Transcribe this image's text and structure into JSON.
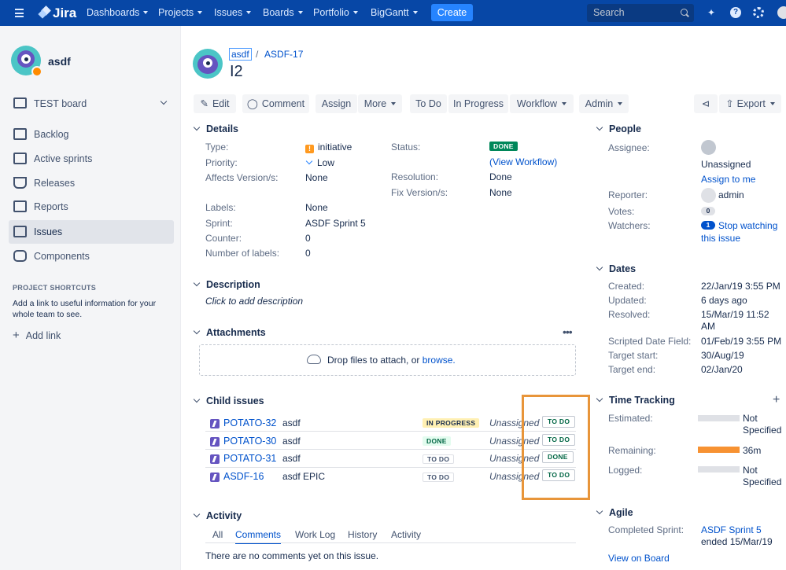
{
  "topnav": {
    "logo": "Jira",
    "items": [
      "Dashboards",
      "Projects",
      "Issues",
      "Boards",
      "Portfolio",
      "BigGantt"
    ],
    "create": "Create",
    "search_placeholder": "Search"
  },
  "sidebar": {
    "project_name": "asdf",
    "board": "TEST board",
    "items": [
      "Backlog",
      "Active sprints",
      "Releases",
      "Reports",
      "Issues",
      "Components"
    ],
    "shortcuts_title": "PROJECT SHORTCUTS",
    "shortcuts_text_1": "Add a link to useful information for your",
    "shortcuts_text_2": "whole team to see.",
    "add_link": "Add link"
  },
  "issue": {
    "breadcrumb_project": "asdf",
    "breadcrumb_sep": "/",
    "breadcrumb_key": "ASDF-17",
    "title": "I2"
  },
  "toolbar": {
    "edit": "Edit",
    "comment": "Comment",
    "assign": "Assign",
    "more": "More",
    "todo": "To Do",
    "inprogress": "In Progress",
    "workflow": "Workflow",
    "admin": "Admin",
    "export": "Export"
  },
  "details": {
    "title": "Details",
    "type_label": "Type:",
    "type_value": "initiative",
    "priority_label": "Priority:",
    "priority_value": "Low",
    "affects_label": "Affects Version/s:",
    "affects_value": "None",
    "status_label": "Status:",
    "status_value": "DONE",
    "view_workflow": "(View Workflow)",
    "resolution_label": "Resolution:",
    "resolution_value": "Done",
    "fix_label": "Fix Version/s:",
    "fix_value": "None",
    "labels_label": "Labels:",
    "labels_value": "None",
    "sprint_label": "Sprint:",
    "sprint_value": "ASDF Sprint 5",
    "counter_label": "Counter:",
    "counter_value": "0",
    "numlabels_label": "Number of labels:",
    "numlabels_value": "0"
  },
  "description": {
    "title": "Description",
    "placeholder": "Click to add description"
  },
  "attachments": {
    "title": "Attachments",
    "drop_text": "Drop files to attach, or",
    "browse": "browse."
  },
  "child_issues": {
    "title": "Child issues",
    "rows": [
      {
        "key": "POTATO-32",
        "summary": "asdf",
        "status": "IN PROGRESS",
        "assignee": "Unassigned",
        "outcome": "TO DO"
      },
      {
        "key": "POTATO-30",
        "summary": "asdf",
        "status": "DONE",
        "assignee": "Unassigned",
        "outcome": "TO DO"
      },
      {
        "key": "POTATO-31",
        "summary": "asdf",
        "status": "TO DO",
        "assignee": "Unassigned",
        "outcome": "DONE"
      },
      {
        "key": "ASDF-16",
        "summary": "asdf EPIC",
        "status": "TO DO",
        "assignee": "Unassigned",
        "outcome": "TO DO"
      }
    ]
  },
  "activity": {
    "title": "Activity",
    "tabs": [
      "All",
      "Comments",
      "Work Log",
      "History",
      "Activity"
    ],
    "empty": "There are no comments yet on this issue."
  },
  "people": {
    "title": "People",
    "assignee_label": "Assignee:",
    "assignee_value": "Unassigned",
    "assign_to_me": "Assign to me",
    "reporter_label": "Reporter:",
    "reporter_value": "admin",
    "votes_label": "Votes:",
    "votes_value": "0",
    "watchers_label": "Watchers:",
    "watchers_count": "1",
    "stop_watching_1": "Stop watching",
    "stop_watching_2": "this issue"
  },
  "dates": {
    "title": "Dates",
    "created_label": "Created:",
    "created_value": "22/Jan/19 3:55 PM",
    "updated_label": "Updated:",
    "updated_value": "6 days ago",
    "resolved_label": "Resolved:",
    "resolved_value_1": "15/Mar/19 11:52",
    "resolved_value_2": "AM",
    "scripted_label": "Scripted Date Field:",
    "scripted_value": "01/Feb/19 3:55 PM",
    "tstart_label": "Target start:",
    "tstart_value": "30/Aug/19",
    "tend_label": "Target end:",
    "tend_value": "02/Jan/20"
  },
  "time_tracking": {
    "title": "Time Tracking",
    "estimated_label": "Estimated:",
    "estimated_value_1": "Not",
    "estimated_value_2": "Specified",
    "remaining_label": "Remaining:",
    "remaining_value": "36m",
    "logged_label": "Logged:",
    "logged_value_1": "Not",
    "logged_value_2": "Specified",
    "remaining_color": "#f79232"
  },
  "agile": {
    "title": "Agile",
    "completed_label": "Completed Sprint:",
    "completed_value": "ASDF Sprint 5",
    "completed_date": "ended 15/Mar/19",
    "view_on_board": "View on Board"
  },
  "colors": {
    "nav": "#0747a6",
    "highlight": "#e8953a",
    "link": "#0052cc"
  }
}
